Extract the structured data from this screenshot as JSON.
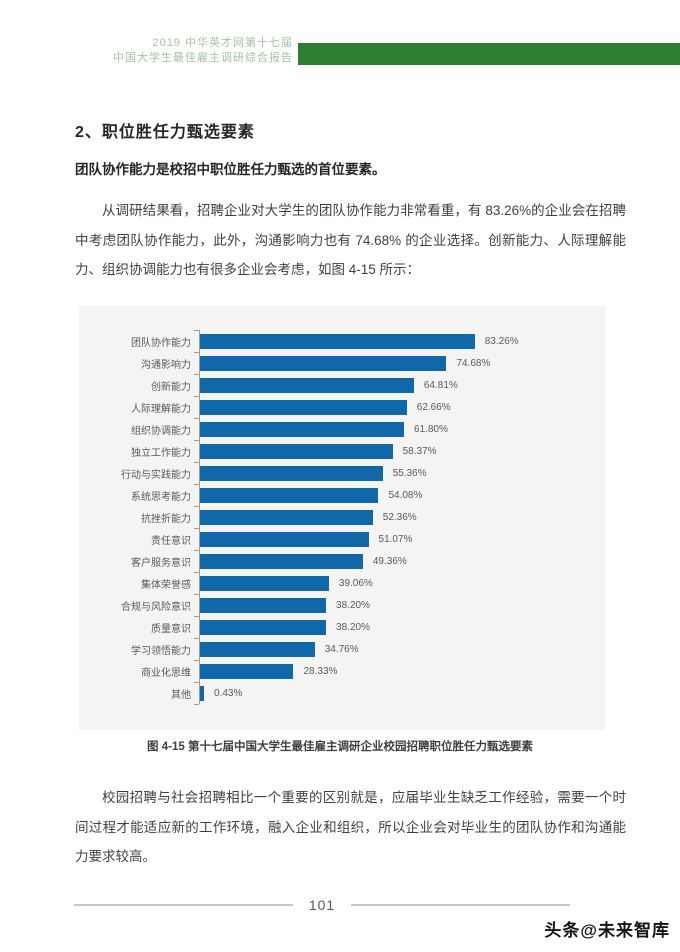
{
  "header": {
    "line1": "2019 中华英才网第十七届",
    "line2": "中国大学生最佳雇主调研综合报告"
  },
  "section": {
    "title": "2、职位胜任力甄选要素",
    "subtitle": "团队协作能力是校招中职位胜任力甄选的首位要素。"
  },
  "paragraphs": {
    "p1": "从调研结果看，招聘企业对大学生的团队协作能力非常看重，有 83.26%的企业会在招聘中考虑团队协作能力，此外，沟通影响力也有 74.68% 的企业选择。创新能力、人际理解能力、组织协调能力也有很多企业会考虑，如图 4-15 所示：",
    "p2": "校园招聘与社会招聘相比一个重要的区别就是，应届毕业生缺乏工作经验，需要一个时间过程才能适应新的工作环境，融入企业和组织，所以企业会对毕业生的团队协作和沟通能力要求较高。"
  },
  "chart_data": {
    "type": "bar",
    "orientation": "horizontal",
    "title": "",
    "xlabel": "",
    "ylabel": "",
    "xlim": [
      0,
      100
    ],
    "grid": false,
    "legend": "none",
    "bar_color": "#1168a8",
    "panel_background": "#f4f4f3",
    "categories": [
      "团队协作能力",
      "沟通影响力",
      "创新能力",
      "人际理解能力",
      "组织协调能力",
      "独立工作能力",
      "行动与实践能力",
      "系统思考能力",
      "抗挫折能力",
      "责任意识",
      "客户服务意识",
      "集体荣誉感",
      "合规与风险意识",
      "质量意识",
      "学习领悟能力",
      "商业化思维",
      "其他"
    ],
    "values": [
      83.26,
      74.68,
      64.81,
      62.66,
      61.8,
      58.37,
      55.36,
      54.08,
      52.36,
      51.07,
      49.36,
      39.06,
      38.2,
      38.2,
      34.76,
      28.33,
      0.43
    ],
    "value_labels": [
      "83.26%",
      "74.68%",
      "64.81%",
      "62.66%",
      "61.80%",
      "58.37%",
      "55.36%",
      "54.08%",
      "52.36%",
      "51.07%",
      "49.36%",
      "39.06%",
      "38.20%",
      "38.20%",
      "34.76%",
      "28.33%",
      "0.43%"
    ],
    "caption": "图 4-15 第十七届中国大学生最佳雇主调研企业校园招聘职位胜任力甄选要素"
  },
  "footer": {
    "page_number": "101",
    "watermark": "头条@未来智库"
  },
  "colors": {
    "accent_green": "#2e7d33",
    "header_text_green": "#a7c19e",
    "bar_blue": "#1168a8"
  }
}
